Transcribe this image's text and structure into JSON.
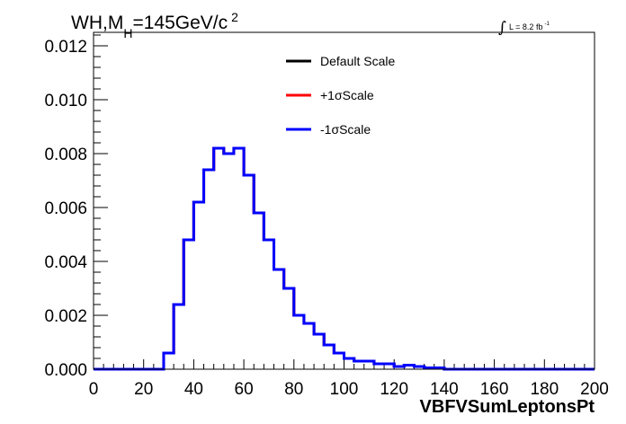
{
  "chart_data": {
    "type": "line",
    "style": "histogram-step",
    "title": "WH,M",
    "title_sub": "H",
    "title_rest": "=145GeV/c",
    "title_sup": "2",
    "lumi_label": "L = 8.2 fb",
    "lumi_sup": "-1",
    "xlabel": "VBFVSumLeptonsPt",
    "ylabel": "",
    "xlim": [
      0,
      200
    ],
    "ylim": [
      0,
      0.0125
    ],
    "x_ticks": [
      0,
      20,
      40,
      60,
      80,
      100,
      120,
      140,
      160,
      180,
      200
    ],
    "x_tick_labels": [
      "0",
      "20",
      "40",
      "60",
      "80",
      "100",
      "120",
      "140",
      "160",
      "180",
      "200"
    ],
    "y_ticks": [
      0,
      0.002,
      0.004,
      0.006,
      0.008,
      0.01,
      0.012
    ],
    "y_tick_labels": [
      "0.000",
      "0.002",
      "0.004",
      "0.006",
      "0.008",
      "0.010",
      "0.012"
    ],
    "bin_edges": [
      0,
      4,
      8,
      12,
      16,
      20,
      24,
      28,
      32,
      36,
      40,
      44,
      48,
      52,
      56,
      60,
      64,
      68,
      72,
      76,
      80,
      84,
      88,
      92,
      96,
      100,
      104,
      108,
      112,
      116,
      120,
      124,
      128,
      132,
      136,
      140,
      144,
      148,
      152,
      156,
      160,
      164,
      168,
      172,
      176,
      180,
      184,
      188,
      192,
      196,
      200
    ],
    "legend": [
      {
        "label": "Default Scale",
        "color": "#000000"
      },
      {
        "label": "+1σScale",
        "color": "#ff0000"
      },
      {
        "label": "-1σScale",
        "color": "#0000ff"
      }
    ],
    "series": [
      {
        "name": "Default Scale",
        "color": "#000000",
        "values": [
          0,
          0,
          0,
          0,
          0,
          0,
          0,
          0.0006,
          0.0024,
          0.0048,
          0.0062,
          0.0074,
          0.0082,
          0.008,
          0.0082,
          0.0072,
          0.0058,
          0.0048,
          0.0037,
          0.003,
          0.002,
          0.0017,
          0.0013,
          0.0009,
          0.0006,
          0.0004,
          0.0003,
          0.0003,
          0.0002,
          0.0002,
          0.0001,
          0.00015,
          0.0001,
          5e-05,
          5e-05,
          0,
          0,
          0,
          0,
          0,
          0,
          0,
          0,
          0,
          0,
          0,
          0,
          0,
          0,
          0
        ]
      },
      {
        "name": "+1σScale",
        "color": "#ff0000",
        "values": [
          0,
          0,
          0,
          0,
          0,
          0,
          0,
          0.0006,
          0.0024,
          0.0048,
          0.0062,
          0.0074,
          0.0082,
          0.008,
          0.0082,
          0.0072,
          0.0058,
          0.0048,
          0.0037,
          0.003,
          0.002,
          0.0017,
          0.0013,
          0.0009,
          0.0006,
          0.0004,
          0.0003,
          0.0003,
          0.0002,
          0.0002,
          0.0001,
          0.00015,
          0.0001,
          5e-05,
          5e-05,
          0,
          0,
          0,
          0,
          0,
          0,
          0,
          0,
          0,
          0,
          0,
          0,
          0,
          0,
          0
        ]
      },
      {
        "name": "-1σScale",
        "color": "#0000ff",
        "values": [
          0,
          0,
          0,
          0,
          0,
          0,
          0,
          0.0006,
          0.0024,
          0.0048,
          0.0062,
          0.0074,
          0.0082,
          0.008,
          0.0082,
          0.0072,
          0.0058,
          0.0048,
          0.0037,
          0.003,
          0.002,
          0.0017,
          0.0013,
          0.0009,
          0.0006,
          0.0004,
          0.0003,
          0.0003,
          0.0002,
          0.0002,
          0.0001,
          0.00015,
          0.0001,
          5e-05,
          5e-05,
          0,
          0,
          0,
          0,
          0,
          0,
          0,
          0,
          0,
          0,
          0,
          0,
          0,
          0,
          0
        ]
      }
    ]
  }
}
